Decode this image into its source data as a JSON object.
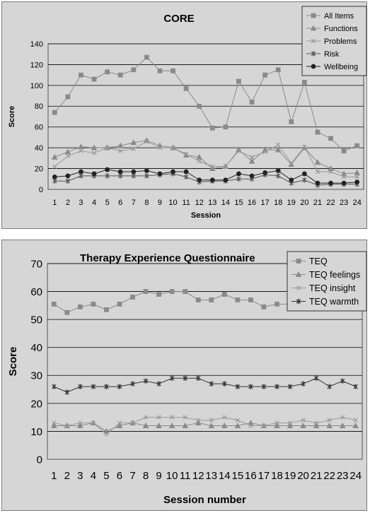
{
  "chart_data": [
    {
      "type": "line",
      "title": "CORE",
      "xlabel": "Session",
      "ylabel": "Score",
      "ylim": [
        0,
        140
      ],
      "yticks": [
        0,
        20,
        40,
        60,
        80,
        100,
        120,
        140
      ],
      "categories": [
        "1",
        "2",
        "3",
        "4",
        "5",
        "6",
        "7",
        "8",
        "9",
        "10",
        "11",
        "12",
        "13",
        "14",
        "15",
        "16",
        "17",
        "18",
        "19",
        "20",
        "21",
        "22",
        "23",
        "24"
      ],
      "grid": true,
      "legend_position": "top-right",
      "series": [
        {
          "name": "All Items",
          "marker": "square",
          "color": "#8a8a8a",
          "values": [
            74,
            89,
            110,
            106,
            113,
            110,
            115,
            127,
            114,
            114,
            97,
            80,
            59,
            60,
            104,
            84,
            110,
            115,
            65,
            103,
            55,
            49,
            37,
            42
          ]
        },
        {
          "name": "Functions",
          "marker": "triangle",
          "color": "#8a8a8a",
          "values": [
            31,
            36,
            41,
            40,
            40,
            42,
            45,
            47,
            42,
            40,
            33,
            31,
            20,
            22,
            38,
            27,
            38,
            38,
            24,
            40,
            26,
            20,
            15,
            16
          ]
        },
        {
          "name": "Problems",
          "marker": "x",
          "color": "#9a9a9a",
          "values": [
            22,
            32,
            37,
            35,
            40,
            37,
            39,
            46,
            40,
            40,
            34,
            27,
            22,
            22,
            37,
            31,
            36,
            43,
            25,
            41,
            17,
            17,
            12,
            12
          ]
        },
        {
          "name": "Risk",
          "marker": "star",
          "color": "#555555",
          "values": [
            8,
            8,
            13,
            13,
            13,
            13,
            13,
            13,
            14,
            15,
            12,
            7,
            8,
            8,
            10,
            10,
            14,
            13,
            6,
            9,
            4,
            5,
            5,
            5
          ]
        },
        {
          "name": "Wellbeing",
          "marker": "circle",
          "color": "#222222",
          "values": [
            12,
            13,
            17,
            15,
            19,
            17,
            17,
            18,
            15,
            17,
            17,
            9,
            9,
            9,
            15,
            13,
            16,
            18,
            9,
            15,
            6,
            6,
            6,
            7
          ]
        }
      ]
    },
    {
      "type": "line",
      "title": "Therapy Experience Questionnaire",
      "xlabel": "Session number",
      "ylabel": "Score",
      "ylim": [
        0,
        70
      ],
      "yticks": [
        0,
        10,
        20,
        30,
        40,
        50,
        60,
        70
      ],
      "categories": [
        "1",
        "2",
        "3",
        "4",
        "5",
        "6",
        "7",
        "8",
        "9",
        "10",
        "11",
        "12",
        "13",
        "14",
        "15",
        "16",
        "17",
        "18",
        "19",
        "20",
        "21",
        "22",
        "23",
        "24"
      ],
      "grid": true,
      "legend_position": "top-right",
      "series": [
        {
          "name": "TEQ",
          "marker": "square",
          "color": "#8a8a8a",
          "values": [
            55.5,
            52.5,
            54.5,
            55.5,
            53.5,
            55.5,
            58,
            60,
            59,
            60,
            60,
            57,
            57,
            59,
            57,
            57,
            54.5,
            55.5,
            55.5,
            57,
            59,
            57,
            60,
            57
          ]
        },
        {
          "name": "TEQ feelings",
          "marker": "triangle",
          "color": "#8a8a8a",
          "values": [
            12,
            12,
            12,
            13,
            10,
            12,
            13,
            12,
            12,
            12,
            12,
            13,
            12,
            12,
            12,
            13,
            12,
            12,
            12,
            12,
            12,
            12,
            12,
            12
          ]
        },
        {
          "name": "TEQ insight",
          "marker": "x",
          "color": "#9a9a9a",
          "values": [
            13,
            12,
            13,
            13,
            9,
            13,
            13,
            15,
            15,
            15,
            15,
            14,
            14,
            15,
            14,
            12,
            12,
            13,
            13,
            14,
            13,
            14,
            15,
            14
          ]
        },
        {
          "name": "TEQ warmth",
          "marker": "star",
          "color": "#333333",
          "values": [
            26,
            24,
            26,
            26,
            26,
            26,
            27,
            28,
            27,
            29,
            29,
            29,
            27,
            27,
            26,
            26,
            26,
            26,
            26,
            27,
            29,
            26,
            28,
            26
          ]
        }
      ]
    }
  ]
}
